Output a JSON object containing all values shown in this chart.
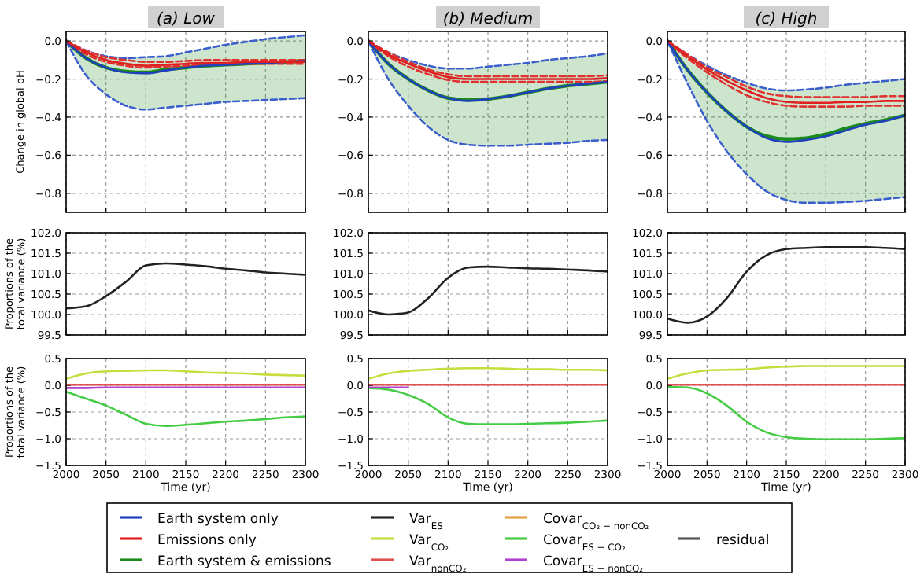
{
  "chart_data": [
    {
      "type": "line",
      "title": "(a) Low",
      "ylabel": "Change in global pH",
      "x": [
        2000,
        2025,
        2050,
        2075,
        2100,
        2125,
        2150,
        2175,
        2200,
        2225,
        2250,
        2275,
        2300
      ],
      "xlim": [
        2000,
        2300
      ],
      "xticks": [
        2000,
        2050,
        2100,
        2150,
        2200,
        2250,
        2300
      ],
      "ylim": [
        -0.9,
        0.05
      ],
      "yticks": [
        {
          "value": 0,
          "label": "0.0"
        },
        {
          "value": -0.2,
          "label": "−0.2"
        },
        {
          "value": -0.4,
          "label": "−0.4"
        },
        {
          "value": -0.6,
          "label": "−0.6"
        },
        {
          "value": -0.8,
          "label": "−0.8"
        }
      ],
      "grid": true,
      "tick_labels": "y",
      "legend": "bottom",
      "series": [
        {
          "color": "#3a5fcd",
          "line_style": "dashed",
          "values": [
            0,
            -0.05,
            -0.08,
            -0.09,
            -0.085,
            -0.08,
            -0.06,
            -0.04,
            -0.02,
            -0.005,
            0.01,
            0.02,
            0.03
          ]
        },
        {
          "color": "#3a5fcd",
          "line_style": "dashed",
          "values": [
            0,
            -0.18,
            -0.28,
            -0.34,
            -0.36,
            -0.35,
            -0.34,
            -0.33,
            -0.32,
            -0.315,
            -0.31,
            -0.305,
            -0.3
          ]
        },
        {
          "color": "#e03030",
          "line_style": "dashed",
          "values": [
            0,
            -0.05,
            -0.085,
            -0.1,
            -0.11,
            -0.11,
            -0.105,
            -0.1,
            -0.1,
            -0.1,
            -0.1,
            -0.1,
            -0.1
          ]
        },
        {
          "color": "#e03030",
          "line_style": "dashed",
          "values": [
            0,
            -0.07,
            -0.11,
            -0.13,
            -0.14,
            -0.135,
            -0.13,
            -0.125,
            -0.125,
            -0.12,
            -0.12,
            -0.12,
            -0.12
          ]
        },
        {
          "name": "Earth system only",
          "color": "#2040c0",
          "values": [
            0,
            -0.09,
            -0.14,
            -0.165,
            -0.17,
            -0.155,
            -0.14,
            -0.13,
            -0.125,
            -0.12,
            -0.115,
            -0.11,
            -0.105
          ]
        },
        {
          "name": "Emissions only",
          "color": "#e02020",
          "values": [
            0,
            -0.06,
            -0.1,
            -0.12,
            -0.13,
            -0.125,
            -0.12,
            -0.115,
            -0.115,
            -0.11,
            -0.11,
            -0.11,
            -0.11
          ]
        },
        {
          "name": "Earth system & emissions",
          "color": "#1a8a1a",
          "values": [
            0,
            -0.09,
            -0.14,
            -0.16,
            -0.165,
            -0.15,
            -0.14,
            -0.13,
            -0.125,
            -0.12,
            -0.115,
            -0.11,
            -0.105
          ],
          "lower": [
            0,
            -0.18,
            -0.28,
            -0.34,
            -0.36,
            -0.35,
            -0.34,
            -0.33,
            -0.32,
            -0.315,
            -0.31,
            -0.305,
            -0.3
          ],
          "upper": [
            0,
            -0.05,
            -0.08,
            -0.09,
            -0.085,
            -0.08,
            -0.06,
            -0.04,
            -0.02,
            -0.005,
            0.01,
            0.02,
            0.03
          ]
        }
      ]
    },
    {
      "type": "line",
      "title": "(b) Medium",
      "x": [
        2000,
        2025,
        2050,
        2075,
        2100,
        2125,
        2150,
        2175,
        2200,
        2225,
        2250,
        2275,
        2300
      ],
      "xlim": [
        2000,
        2300
      ],
      "xticks": [
        2000,
        2050,
        2100,
        2150,
        2200,
        2250,
        2300
      ],
      "ylim": [
        -0.9,
        0.05
      ],
      "yticks": [
        {
          "value": 0,
          "label": "0.0"
        },
        {
          "value": -0.2,
          "label": "−0.2"
        },
        {
          "value": -0.4,
          "label": "−0.4"
        },
        {
          "value": -0.6,
          "label": "−0.6"
        },
        {
          "value": -0.8,
          "label": "−0.8"
        }
      ],
      "grid": true,
      "tick_labels": "y",
      "series": [
        {
          "color": "#3a5fcd",
          "line_style": "dashed",
          "values": [
            0,
            -0.06,
            -0.1,
            -0.13,
            -0.145,
            -0.145,
            -0.135,
            -0.125,
            -0.115,
            -0.1,
            -0.09,
            -0.08,
            -0.065
          ]
        },
        {
          "color": "#3a5fcd",
          "line_style": "dashed",
          "values": [
            0,
            -0.2,
            -0.34,
            -0.45,
            -0.52,
            -0.545,
            -0.55,
            -0.55,
            -0.545,
            -0.54,
            -0.535,
            -0.525,
            -0.52
          ]
        },
        {
          "color": "#e03030",
          "line_style": "dashed",
          "values": [
            0,
            -0.06,
            -0.11,
            -0.15,
            -0.175,
            -0.185,
            -0.185,
            -0.185,
            -0.185,
            -0.185,
            -0.185,
            -0.185,
            -0.18
          ]
        },
        {
          "color": "#e03030",
          "line_style": "dashed",
          "values": [
            0,
            -0.08,
            -0.135,
            -0.175,
            -0.205,
            -0.215,
            -0.215,
            -0.215,
            -0.215,
            -0.215,
            -0.215,
            -0.215,
            -0.21
          ]
        },
        {
          "color": "#2040c0",
          "values": [
            0,
            -0.12,
            -0.2,
            -0.26,
            -0.3,
            -0.315,
            -0.305,
            -0.29,
            -0.27,
            -0.25,
            -0.235,
            -0.225,
            -0.215
          ]
        },
        {
          "color": "#e02020",
          "values": [
            0,
            -0.07,
            -0.12,
            -0.16,
            -0.19,
            -0.2,
            -0.2,
            -0.2,
            -0.2,
            -0.2,
            -0.2,
            -0.2,
            -0.195
          ]
        },
        {
          "color": "#1a8a1a",
          "values": [
            0,
            -0.12,
            -0.2,
            -0.26,
            -0.3,
            -0.31,
            -0.305,
            -0.29,
            -0.27,
            -0.25,
            -0.235,
            -0.225,
            -0.215
          ],
          "lower": [
            0,
            -0.2,
            -0.34,
            -0.45,
            -0.52,
            -0.545,
            -0.55,
            -0.55,
            -0.545,
            -0.54,
            -0.535,
            -0.525,
            -0.52
          ],
          "upper": [
            0,
            -0.06,
            -0.1,
            -0.13,
            -0.145,
            -0.145,
            -0.135,
            -0.125,
            -0.115,
            -0.1,
            -0.09,
            -0.08,
            -0.065
          ]
        }
      ]
    },
    {
      "type": "line",
      "title": "(c) High",
      "x": [
        2000,
        2025,
        2050,
        2075,
        2100,
        2125,
        2150,
        2175,
        2200,
        2225,
        2250,
        2275,
        2300
      ],
      "xlim": [
        2000,
        2300
      ],
      "xticks": [
        2000,
        2050,
        2100,
        2150,
        2200,
        2250,
        2300
      ],
      "ylim": [
        -0.9,
        0.05
      ],
      "yticks": [
        {
          "value": 0,
          "label": "0.0"
        },
        {
          "value": -0.2,
          "label": "−0.2"
        },
        {
          "value": -0.4,
          "label": "−0.4"
        },
        {
          "value": -0.6,
          "label": "−0.6"
        },
        {
          "value": -0.8,
          "label": "−0.8"
        }
      ],
      "grid": true,
      "tick_labels": "y",
      "series": [
        {
          "color": "#3a5fcd",
          "line_style": "dashed",
          "values": [
            0,
            -0.07,
            -0.13,
            -0.18,
            -0.22,
            -0.25,
            -0.26,
            -0.255,
            -0.245,
            -0.23,
            -0.22,
            -0.21,
            -0.2
          ]
        },
        {
          "color": "#3a5fcd",
          "line_style": "dashed",
          "values": [
            0,
            -0.22,
            -0.42,
            -0.58,
            -0.7,
            -0.79,
            -0.835,
            -0.85,
            -0.85,
            -0.845,
            -0.84,
            -0.83,
            -0.82
          ]
        },
        {
          "color": "#e03030",
          "line_style": "dashed",
          "values": [
            0,
            -0.07,
            -0.14,
            -0.19,
            -0.24,
            -0.275,
            -0.29,
            -0.295,
            -0.295,
            -0.295,
            -0.295,
            -0.29,
            -0.29
          ]
        },
        {
          "color": "#e03030",
          "line_style": "dashed",
          "values": [
            0,
            -0.09,
            -0.165,
            -0.23,
            -0.285,
            -0.32,
            -0.34,
            -0.345,
            -0.345,
            -0.345,
            -0.34,
            -0.34,
            -0.34
          ]
        },
        {
          "color": "#2040c0",
          "values": [
            0,
            -0.15,
            -0.27,
            -0.37,
            -0.45,
            -0.51,
            -0.53,
            -0.52,
            -0.5,
            -0.47,
            -0.44,
            -0.42,
            -0.39
          ]
        },
        {
          "color": "#e02020",
          "values": [
            0,
            -0.08,
            -0.15,
            -0.21,
            -0.26,
            -0.3,
            -0.32,
            -0.325,
            -0.325,
            -0.32,
            -0.32,
            -0.315,
            -0.315
          ]
        },
        {
          "color": "#1a8a1a",
          "values": [
            0,
            -0.15,
            -0.27,
            -0.37,
            -0.45,
            -0.5,
            -0.515,
            -0.51,
            -0.49,
            -0.46,
            -0.435,
            -0.415,
            -0.39
          ],
          "lower": [
            0,
            -0.22,
            -0.42,
            -0.58,
            -0.7,
            -0.79,
            -0.835,
            -0.85,
            -0.85,
            -0.845,
            -0.84,
            -0.83,
            -0.82
          ],
          "upper": [
            0,
            -0.07,
            -0.13,
            -0.18,
            -0.22,
            -0.25,
            -0.26,
            -0.255,
            -0.245,
            -0.23,
            -0.22,
            -0.21,
            -0.2
          ]
        }
      ]
    },
    {
      "type": "line",
      "ylabel": "Proportions of the total variance (%)",
      "x": [
        2000,
        2025,
        2050,
        2075,
        2100,
        2125,
        2150,
        2175,
        2200,
        2225,
        2250,
        2275,
        2300
      ],
      "xlim": [
        2000,
        2300
      ],
      "xticks": [
        2000,
        2050,
        2100,
        2150,
        2200,
        2250,
        2300
      ],
      "ylim": [
        99.5,
        102
      ],
      "yticks": [
        99.5,
        {
          "value": 100,
          "label": "100.0"
        },
        100.5,
        {
          "value": 101,
          "label": "101.0"
        },
        101.5,
        {
          "value": 102,
          "label": "102.0"
        }
      ],
      "grid": true,
      "tick_labels": "y",
      "legend": "bottom",
      "series": [
        {
          "name": "Var$_{ES}$",
          "color": "#222222",
          "values": [
            100.15,
            100.2,
            100.45,
            100.8,
            101.2,
            101.25,
            101.22,
            101.18,
            101.12,
            101.08,
            101.03,
            101.0,
            100.97
          ]
        }
      ]
    },
    {
      "type": "line",
      "x": [
        2000,
        2025,
        2050,
        2075,
        2100,
        2125,
        2150,
        2175,
        2200,
        2225,
        2250,
        2275,
        2300
      ],
      "xlim": [
        2000,
        2300
      ],
      "xticks": [
        2000,
        2050,
        2100,
        2150,
        2200,
        2250,
        2300
      ],
      "ylim": [
        99.5,
        102
      ],
      "yticks": [
        99.5,
        {
          "value": 100,
          "label": "100.0"
        },
        100.5,
        {
          "value": 101,
          "label": "101.0"
        },
        101.5,
        {
          "value": 102,
          "label": "102.0"
        }
      ],
      "grid": true,
      "tick_labels": "y",
      "series": [
        {
          "color": "#222222",
          "values": [
            100.1,
            100.0,
            100.05,
            100.4,
            100.9,
            101.15,
            101.17,
            101.15,
            101.13,
            101.12,
            101.1,
            101.08,
            101.05
          ]
        }
      ]
    },
    {
      "type": "line",
      "x": [
        2000,
        2025,
        2050,
        2075,
        2100,
        2125,
        2150,
        2175,
        2200,
        2225,
        2250,
        2275,
        2300
      ],
      "xlim": [
        2000,
        2300
      ],
      "xticks": [
        2000,
        2050,
        2100,
        2150,
        2200,
        2250,
        2300
      ],
      "ylim": [
        99.5,
        102
      ],
      "yticks": [
        99.5,
        {
          "value": 100,
          "label": "100.0"
        },
        100.5,
        {
          "value": 101,
          "label": "101.0"
        },
        101.5,
        {
          "value": 102,
          "label": "102.0"
        }
      ],
      "grid": true,
      "tick_labels": "y",
      "series": [
        {
          "color": "#222222",
          "values": [
            99.9,
            99.8,
            99.95,
            100.4,
            101.05,
            101.45,
            101.6,
            101.63,
            101.65,
            101.65,
            101.65,
            101.63,
            101.6
          ]
        }
      ]
    },
    {
      "type": "line",
      "ylabel": "Proportions of the total variance (%)",
      "xlabel": "Time (yr)",
      "x": [
        2000,
        2025,
        2050,
        2075,
        2100,
        2125,
        2150,
        2175,
        2200,
        2225,
        2250,
        2275,
        2300
      ],
      "xlim": [
        2000,
        2300
      ],
      "xticks": [
        2000,
        2050,
        2100,
        2150,
        2200,
        2250,
        2300
      ],
      "ylim": [
        -1.5,
        0.5
      ],
      "yticks": [
        {
          "value": -1.5,
          "label": "−1.5"
        },
        {
          "value": -1,
          "label": "−1.0"
        },
        {
          "value": -0.5,
          "label": "−0.5"
        },
        {
          "value": 0,
          "label": "0.0"
        },
        0.5
      ],
      "grid": true,
      "legend": "bottom",
      "series": [
        {
          "name": "Var$_{CO₂}$",
          "color": "#c8dc3c",
          "values": [
            0.12,
            0.22,
            0.26,
            0.27,
            0.28,
            0.28,
            0.26,
            0.24,
            0.23,
            0.22,
            0.2,
            0.19,
            0.18
          ]
        },
        {
          "name": "Var$_{nonCO₂}$",
          "color": "#e05050",
          "values": [
            0.01,
            0.01,
            0.01,
            0.01,
            0.01,
            0.01,
            0.01,
            0.01,
            0.01,
            0.01,
            0.01,
            0.01,
            0.01
          ]
        },
        {
          "name": "Covar$_{CO₂ − nonCO₂}$",
          "color": "#e0a040",
          "values": [
            null,
            null,
            null,
            null,
            null,
            null,
            null,
            null,
            null,
            null,
            null,
            null,
            null
          ]
        },
        {
          "name": "Covar$_{ES − CO₂}$",
          "color": "#44cc44",
          "values": [
            -0.12,
            -0.25,
            -0.38,
            -0.55,
            -0.72,
            -0.76,
            -0.74,
            -0.71,
            -0.68,
            -0.66,
            -0.63,
            -0.6,
            -0.58
          ]
        },
        {
          "name": "Covar$_{ES − nonCO₂}$",
          "color": "#b040d0",
          "values": [
            -0.05,
            -0.05,
            -0.04,
            -0.04,
            -0.04,
            -0.04,
            -0.04,
            -0.04,
            -0.04,
            -0.04,
            -0.04,
            -0.04,
            -0.04
          ]
        },
        {
          "name": "residual",
          "color": "#555555",
          "values": [
            null,
            null,
            null,
            null,
            null,
            null,
            null,
            null,
            null,
            null,
            null,
            null,
            null
          ]
        }
      ]
    },
    {
      "type": "line",
      "xlabel": "Time (yr)",
      "x": [
        2000,
        2025,
        2050,
        2075,
        2100,
        2125,
        2150,
        2175,
        2200,
        2225,
        2250,
        2275,
        2300
      ],
      "xlim": [
        2000,
        2300
      ],
      "xticks": [
        2000,
        2050,
        2100,
        2150,
        2200,
        2250,
        2300
      ],
      "ylim": [
        -1.5,
        0.5
      ],
      "yticks": [
        {
          "value": -1.5,
          "label": "−1.5"
        },
        {
          "value": -1,
          "label": "−1.0"
        },
        {
          "value": -0.5,
          "label": "−0.5"
        },
        {
          "value": 0,
          "label": "0.0"
        },
        0.5
      ],
      "grid": true,
      "series": [
        {
          "color": "#c8dc3c",
          "values": [
            0.12,
            0.22,
            0.27,
            0.29,
            0.31,
            0.32,
            0.32,
            0.31,
            0.3,
            0.3,
            0.29,
            0.29,
            0.28
          ]
        },
        {
          "color": "#e05050",
          "values": [
            0.01,
            0.01,
            0.01,
            0.01,
            0.01,
            0.01,
            0.01,
            0.01,
            0.01,
            0.01,
            0.01,
            0.01,
            0.01
          ]
        },
        {
          "color": "#e0a040",
          "values": [
            null,
            null,
            null,
            null,
            null,
            null,
            null,
            null,
            null,
            null,
            null,
            null,
            null
          ]
        },
        {
          "color": "#44cc44",
          "values": [
            -0.05,
            -0.08,
            -0.18,
            -0.35,
            -0.6,
            -0.72,
            -0.73,
            -0.73,
            -0.72,
            -0.71,
            -0.7,
            -0.68,
            -0.66
          ]
        },
        {
          "color": "#b040d0",
          "values": [
            -0.04,
            -0.04,
            -0.04,
            null,
            null,
            null,
            null,
            null,
            null,
            null,
            null,
            null,
            null
          ]
        },
        {
          "color": "#555555",
          "values": [
            null,
            null,
            null,
            null,
            null,
            null,
            null,
            null,
            null,
            null,
            null,
            null,
            null
          ]
        }
      ]
    },
    {
      "type": "line",
      "xlabel": "Time (yr)",
      "x": [
        2000,
        2025,
        2050,
        2075,
        2100,
        2125,
        2150,
        2175,
        2200,
        2225,
        2250,
        2275,
        2300
      ],
      "xlim": [
        2000,
        2300
      ],
      "xticks": [
        2000,
        2050,
        2100,
        2150,
        2200,
        2250,
        2300
      ],
      "ylim": [
        -1.5,
        0.5
      ],
      "yticks": [
        {
          "value": -1.5,
          "label": "−1.5"
        },
        {
          "value": -1,
          "label": "−1.0"
        },
        {
          "value": -0.5,
          "label": "−0.5"
        },
        {
          "value": 0,
          "label": "0.0"
        },
        0.5
      ],
      "grid": true,
      "series": [
        {
          "color": "#c8dc3c",
          "values": [
            0.12,
            0.22,
            0.28,
            0.29,
            0.3,
            0.33,
            0.35,
            0.36,
            0.36,
            0.36,
            0.36,
            0.36,
            0.36
          ]
        },
        {
          "color": "#e05050",
          "values": [
            0.01,
            0.01,
            0.01,
            0.01,
            0.01,
            0.01,
            0.01,
            0.01,
            0.01,
            0.01,
            0.01,
            0.01,
            0.01
          ]
        },
        {
          "color": "#e0a040",
          "values": [
            null,
            null,
            null,
            null,
            null,
            null,
            null,
            null,
            null,
            null,
            null,
            null,
            null
          ]
        },
        {
          "color": "#44cc44",
          "values": [
            -0.03,
            -0.04,
            -0.15,
            -0.38,
            -0.68,
            -0.88,
            -0.97,
            -1.0,
            -1.01,
            -1.01,
            -1.01,
            -1.0,
            -0.99
          ]
        },
        {
          "color": "#b040d0",
          "values": [
            null,
            null,
            null,
            null,
            null,
            null,
            null,
            null,
            null,
            null,
            null,
            null,
            null
          ]
        },
        {
          "color": "#555555",
          "values": [
            null,
            null,
            null,
            null,
            null,
            null,
            null,
            null,
            null,
            null,
            null,
            null,
            null
          ]
        }
      ]
    }
  ]
}
